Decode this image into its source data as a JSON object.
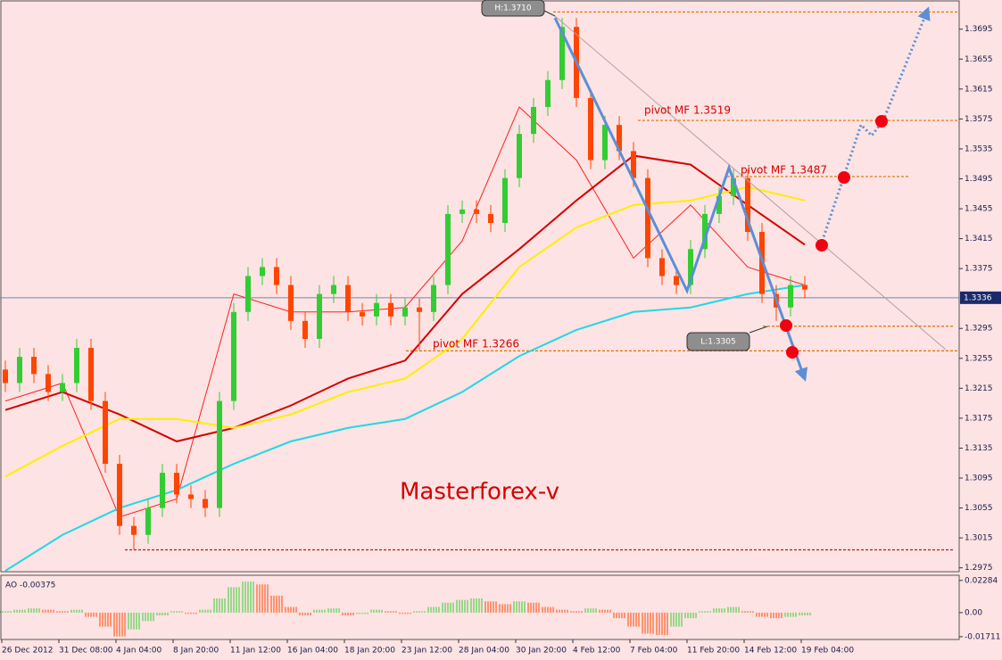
{
  "chart_data": {
    "type": "candlestick",
    "up_color": "#32cd32",
    "down_color": "#ff4500",
    "ylim": [
      1.2971,
      1.3734
    ],
    "yticks": [
      1.3695,
      1.3655,
      1.3615,
      1.3575,
      1.3535,
      1.3495,
      1.3455,
      1.3415,
      1.3375,
      1.3295,
      1.3255,
      1.3215,
      1.3175,
      1.3135,
      1.3095,
      1.3055,
      1.3015,
      1.2975
    ],
    "current_price": 1.3336,
    "time_labels": [
      "26 Dec 2012",
      "31 Dec 08:00",
      "4 Jan 04:00",
      "8 Jan 20:00",
      "11 Jan 12:00",
      "16 Jan 04:00",
      "18 Jan 20:00",
      "23 Jan 12:00",
      "28 Jan 04:00",
      "30 Jan 20:00",
      "4 Feb 12:00",
      "7 Feb 04:00",
      "11 Feb 20:00",
      "14 Feb 12:00",
      "19 Feb 04:00"
    ],
    "open": [
      1.324,
      1.3222,
      1.3257,
      1.3234,
      1.321,
      1.3222,
      1.3269,
      1.3198,
      1.3114,
      1.3031,
      1.3019,
      1.3055,
      1.3102,
      1.3073,
      1.3067,
      1.3055,
      1.3198,
      1.3317,
      1.3365,
      1.3377,
      1.3353,
      1.3305,
      1.3281,
      1.3341,
      1.3353,
      1.3317,
      1.3311,
      1.3329,
      1.3311,
      1.3323,
      1.3317,
      1.3353,
      1.3448,
      1.3454,
      1.3448,
      1.3436,
      1.3496,
      1.3555,
      1.3591,
      1.3627,
      1.3698,
      1.3603,
      1.352,
      1.3567,
      1.3532,
      1.3496,
      1.3389,
      1.3365,
      1.3353,
      1.3401,
      1.3448,
      1.3472,
      1.3496,
      1.3424,
      1.3341,
      1.3323,
      1.3353
    ],
    "high": [
      1.3252,
      1.3269,
      1.3269,
      1.3246,
      1.3234,
      1.3281,
      1.3281,
      1.321,
      1.3126,
      1.3043,
      1.3067,
      1.3114,
      1.3114,
      1.3085,
      1.3079,
      1.321,
      1.3329,
      1.3377,
      1.3389,
      1.3389,
      1.3365,
      1.3317,
      1.3353,
      1.3365,
      1.3365,
      1.3329,
      1.3341,
      1.3341,
      1.3335,
      1.3335,
      1.3365,
      1.346,
      1.3466,
      1.3466,
      1.346,
      1.3508,
      1.3567,
      1.3603,
      1.3639,
      1.371,
      1.371,
      1.3615,
      1.3579,
      1.3579,
      1.3544,
      1.3508,
      1.3401,
      1.3377,
      1.3413,
      1.346,
      1.3484,
      1.3508,
      1.3508,
      1.3436,
      1.3353,
      1.3365,
      1.3365
    ],
    "low": [
      1.321,
      1.321,
      1.3222,
      1.3198,
      1.3198,
      1.321,
      1.3186,
      1.3102,
      1.3019,
      1.2999,
      1.3007,
      1.3043,
      1.3061,
      1.3055,
      1.3043,
      1.3043,
      1.3186,
      1.3305,
      1.3353,
      1.3341,
      1.3293,
      1.3269,
      1.3269,
      1.3329,
      1.3305,
      1.3299,
      1.3299,
      1.3299,
      1.3299,
      1.3266,
      1.3305,
      1.3341,
      1.3436,
      1.3436,
      1.3424,
      1.3424,
      1.3484,
      1.3543,
      1.3579,
      1.3615,
      1.3591,
      1.3508,
      1.3508,
      1.352,
      1.3484,
      1.3377,
      1.3353,
      1.3341,
      1.3341,
      1.3389,
      1.3436,
      1.346,
      1.3412,
      1.3329,
      1.3305,
      1.3311,
      1.3335
    ],
    "close": [
      1.3222,
      1.3257,
      1.3234,
      1.321,
      1.3222,
      1.3269,
      1.3198,
      1.3114,
      1.3031,
      1.3019,
      1.3055,
      1.3102,
      1.3073,
      1.3067,
      1.3055,
      1.3198,
      1.3317,
      1.3365,
      1.3377,
      1.3353,
      1.3305,
      1.3281,
      1.3341,
      1.3353,
      1.3317,
      1.3311,
      1.3329,
      1.3311,
      1.3323,
      1.3317,
      1.3353,
      1.3448,
      1.3454,
      1.3448,
      1.3436,
      1.3496,
      1.3555,
      1.3591,
      1.3627,
      1.3698,
      1.3603,
      1.352,
      1.3567,
      1.3532,
      1.3496,
      1.3389,
      1.3365,
      1.3353,
      1.3401,
      1.3448,
      1.3472,
      1.3496,
      1.3424,
      1.3341,
      1.3323,
      1.3353,
      1.3347
    ],
    "ma_x": [
      0,
      4,
      8,
      12,
      16,
      20,
      24,
      28,
      32,
      36,
      40,
      44,
      48,
      52,
      56
    ],
    "moving_averages": [
      {
        "color": "#ff2020",
        "width": 1,
        "values": [
          1.3198,
          1.3222,
          1.3043,
          1.3067,
          1.3341,
          1.3317,
          1.3317,
          1.3323,
          1.3412,
          1.3591,
          1.352,
          1.3389,
          1.346,
          1.3377,
          1.3353
        ]
      },
      {
        "color": "#d40000",
        "width": 2,
        "values": [
          1.3186,
          1.321,
          1.318,
          1.3144,
          1.3162,
          1.3192,
          1.3228,
          1.3252,
          1.3341,
          1.3401,
          1.3466,
          1.3526,
          1.3514,
          1.346,
          1.3407
        ]
      },
      {
        "color": "#ffee00",
        "width": 2,
        "values": [
          1.3097,
          1.3138,
          1.3174,
          1.3174,
          1.3162,
          1.318,
          1.321,
          1.3228,
          1.3281,
          1.3377,
          1.343,
          1.346,
          1.3466,
          1.3484,
          1.3466
        ]
      },
      {
        "color": "#20d8e8",
        "width": 2,
        "values": [
          1.2971,
          1.3019,
          1.3055,
          1.3079,
          1.3114,
          1.3144,
          1.3162,
          1.3174,
          1.321,
          1.3258,
          1.3293,
          1.3317,
          1.3323,
          1.3341,
          1.3353
        ]
      }
    ],
    "levels": [
      1.3718,
      1.3573,
      1.3498,
      1.3298,
      1.3265,
      1.2999
    ],
    "annotations": [
      "H:1.3710",
      "L:1.3305",
      "pivot MF 1.3519",
      "pivot MF 1.3487",
      "pivot MF 1.3266",
      "Masterforex-v"
    ],
    "ao": {
      "title": "AO -0.00375",
      "ylim": [
        -0.0172,
        0.0246
      ],
      "yticks": [
        {
          "value": 0.02284,
          "label": "0.02284"
        },
        {
          "value": 0,
          "label": "0.00"
        },
        {
          "value": -0.01711,
          "label": "-0.01711"
        }
      ],
      "values": [
        0.001,
        0.002,
        0.003,
        0.002,
        0.001,
        0.002,
        -0.003,
        -0.01,
        -0.017,
        -0.012,
        -0.006,
        -0.002,
        0.001,
        -0.001,
        0.002,
        0.01,
        0.018,
        0.022,
        0.02,
        0.012,
        0.004,
        -0.002,
        0.002,
        0.003,
        -0.002,
        -0.001,
        0.002,
        0.001,
        -0.001,
        0.001,
        0.004,
        0.007,
        0.009,
        0.01,
        0.008,
        0.006,
        0.008,
        0.007,
        0.004,
        0.002,
        0.001,
        0.003,
        0.002,
        -0.004,
        -0.01,
        -0.015,
        -0.016,
        -0.01,
        -0.004,
        0.001,
        0.003,
        0.004,
        0.001,
        -0.003,
        -0.004,
        -0.003,
        -0.002
      ]
    }
  }
}
